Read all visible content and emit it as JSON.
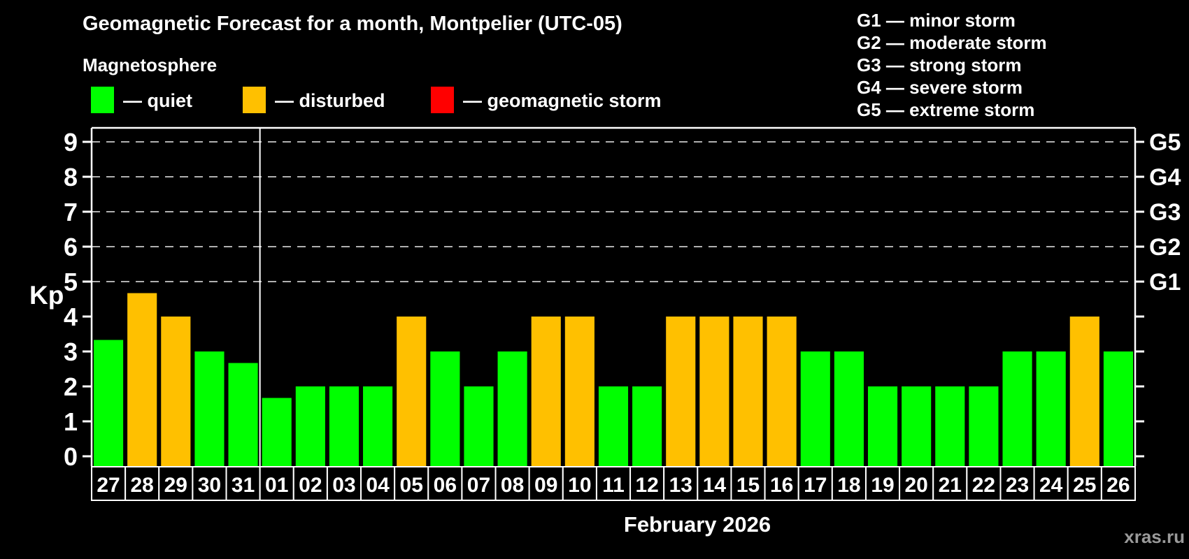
{
  "header": {
    "title": "Geomagnetic Forecast for a month, Montpelier (UTC-05)",
    "subtitle": "Magnetosphere"
  },
  "legend": {
    "items": [
      {
        "label": "— quiet",
        "color": "#00ff00",
        "status": "quiet"
      },
      {
        "label": "— disturbed",
        "color": "#ffc000",
        "status": "disturbed"
      },
      {
        "label": "— geomagnetic storm",
        "color": "#ff0000",
        "status": "storm"
      }
    ]
  },
  "storm_scale_legend": {
    "items": [
      "G1 — minor storm",
      "G2 — moderate storm",
      "G3 — strong storm",
      "G4 — severe storm",
      "G5 — extreme storm"
    ]
  },
  "footer": {
    "month_label": "February 2026",
    "watermark": "xras.ru"
  },
  "chart_data": {
    "type": "bar",
    "ylabel": "Kp",
    "ylim": [
      0,
      9.4
    ],
    "yticks": [
      0,
      1,
      2,
      3,
      4,
      5,
      6,
      7,
      8,
      9
    ],
    "grid": "dashed horizontal lines at Kp 5,6,7,8,9",
    "gridline_levels": [
      5,
      6,
      7,
      8,
      9
    ],
    "right_axis_labels": [
      {
        "label": "G1",
        "kp": 5
      },
      {
        "label": "G2",
        "kp": 6
      },
      {
        "label": "G3",
        "kp": 7
      },
      {
        "label": "G4",
        "kp": 8
      },
      {
        "label": "G5",
        "kp": 9
      }
    ],
    "month_separator_after_index": 5,
    "status_colors": {
      "quiet": "#00ff00",
      "disturbed": "#ffc000",
      "storm": "#ff0000"
    },
    "bars": [
      {
        "day": "27",
        "kp": 3.33,
        "status": "quiet"
      },
      {
        "day": "28",
        "kp": 4.67,
        "status": "disturbed"
      },
      {
        "day": "29",
        "kp": 4.0,
        "status": "disturbed"
      },
      {
        "day": "30",
        "kp": 3.0,
        "status": "quiet"
      },
      {
        "day": "31",
        "kp": 2.67,
        "status": "quiet"
      },
      {
        "day": "01",
        "kp": 1.67,
        "status": "quiet"
      },
      {
        "day": "02",
        "kp": 2.0,
        "status": "quiet"
      },
      {
        "day": "03",
        "kp": 2.0,
        "status": "quiet"
      },
      {
        "day": "04",
        "kp": 2.0,
        "status": "quiet"
      },
      {
        "day": "05",
        "kp": 4.0,
        "status": "disturbed"
      },
      {
        "day": "06",
        "kp": 3.0,
        "status": "quiet"
      },
      {
        "day": "07",
        "kp": 2.0,
        "status": "quiet"
      },
      {
        "day": "08",
        "kp": 3.0,
        "status": "quiet"
      },
      {
        "day": "09",
        "kp": 4.0,
        "status": "disturbed"
      },
      {
        "day": "10",
        "kp": 4.0,
        "status": "disturbed"
      },
      {
        "day": "11",
        "kp": 2.0,
        "status": "quiet"
      },
      {
        "day": "12",
        "kp": 2.0,
        "status": "quiet"
      },
      {
        "day": "13",
        "kp": 4.0,
        "status": "disturbed"
      },
      {
        "day": "14",
        "kp": 4.0,
        "status": "disturbed"
      },
      {
        "day": "15",
        "kp": 4.0,
        "status": "disturbed"
      },
      {
        "day": "16",
        "kp": 4.0,
        "status": "disturbed"
      },
      {
        "day": "17",
        "kp": 3.0,
        "status": "quiet"
      },
      {
        "day": "18",
        "kp": 3.0,
        "status": "quiet"
      },
      {
        "day": "19",
        "kp": 2.0,
        "status": "quiet"
      },
      {
        "day": "20",
        "kp": 2.0,
        "status": "quiet"
      },
      {
        "day": "21",
        "kp": 2.0,
        "status": "quiet"
      },
      {
        "day": "22",
        "kp": 2.0,
        "status": "quiet"
      },
      {
        "day": "23",
        "kp": 3.0,
        "status": "quiet"
      },
      {
        "day": "24",
        "kp": 3.0,
        "status": "quiet"
      },
      {
        "day": "25",
        "kp": 4.0,
        "status": "disturbed"
      },
      {
        "day": "26",
        "kp": 3.0,
        "status": "quiet"
      }
    ]
  }
}
